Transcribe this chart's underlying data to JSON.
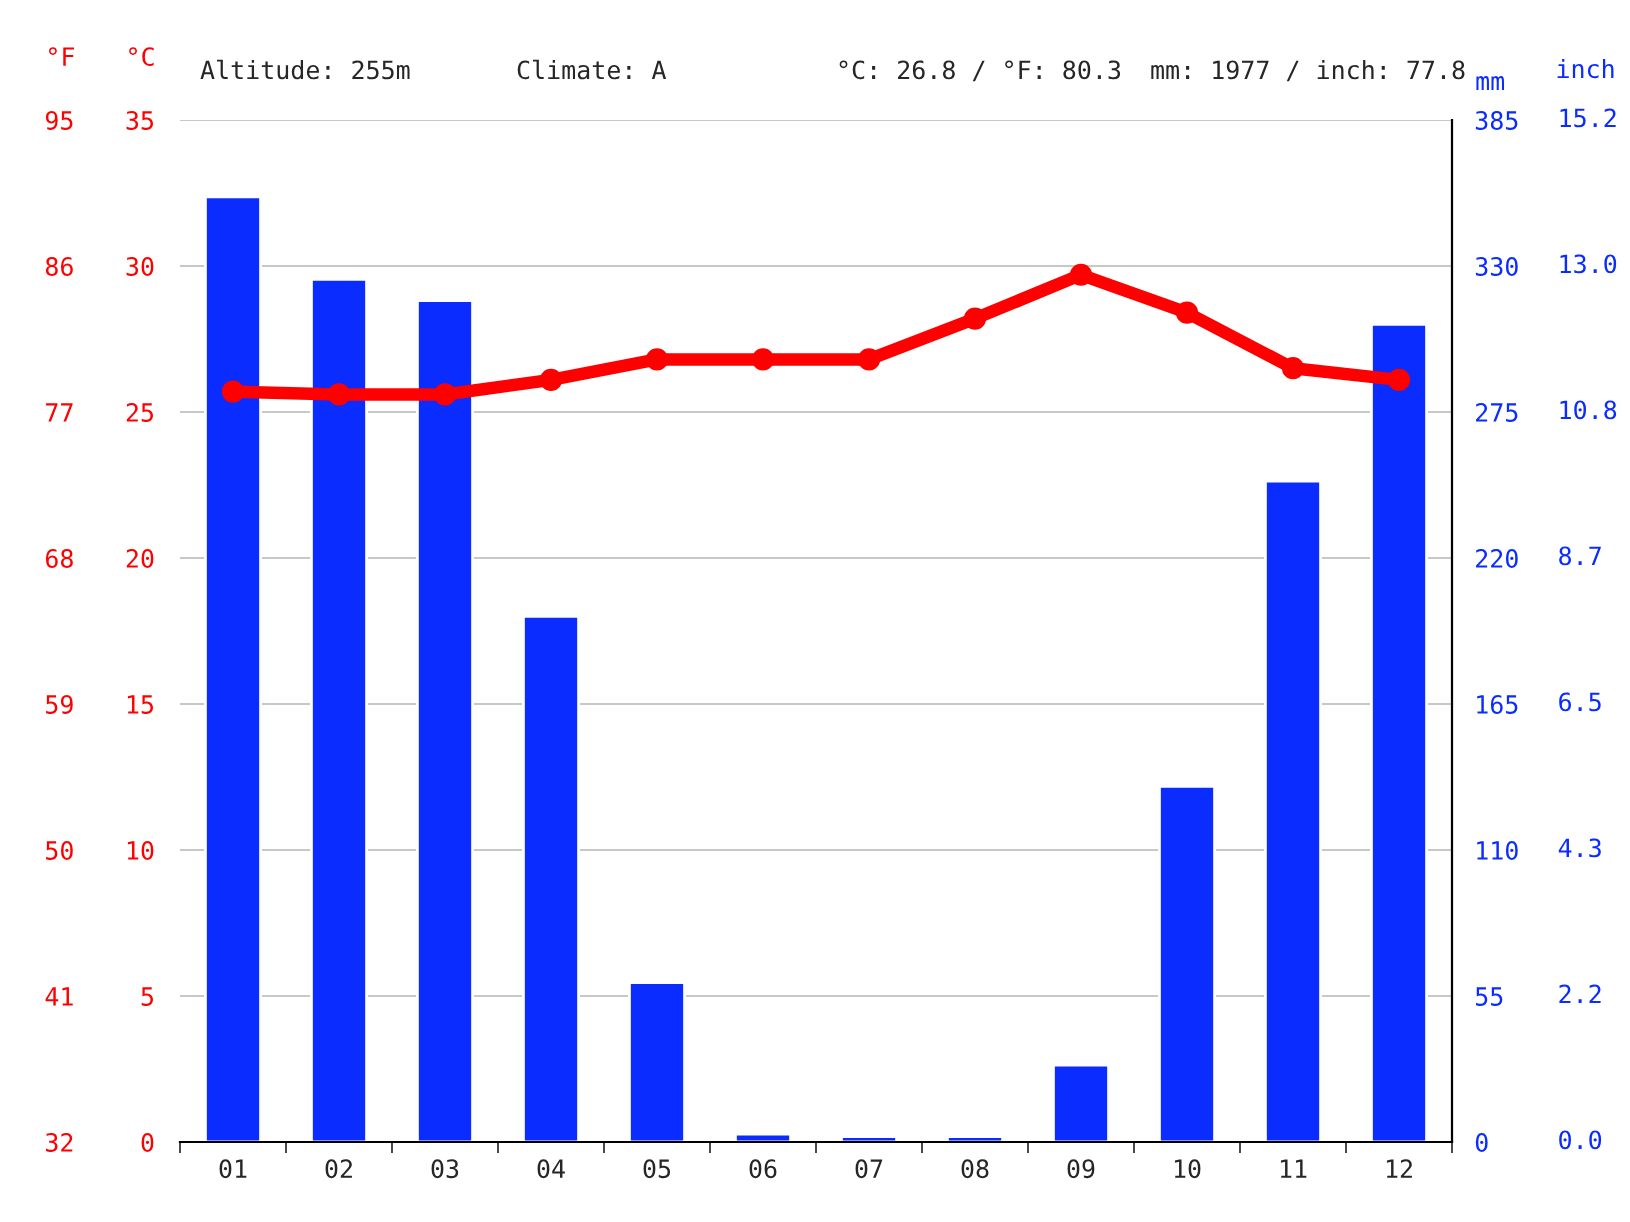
{
  "chart_data": {
    "type": "bar",
    "categories": [
      "01",
      "02",
      "03",
      "04",
      "05",
      "06",
      "07",
      "08",
      "09",
      "10",
      "11",
      "12"
    ],
    "series": [
      {
        "axis": "y2",
        "color": "#0a2cff",
        "values": [
          356,
          325,
          317,
          198,
          60,
          3,
          2,
          2,
          29,
          134,
          249,
          308
        ]
      },
      {
        "type": "line",
        "axis": "y",
        "color": "#ff0000",
        "values": [
          25.7,
          25.6,
          25.6,
          26.1,
          26.8,
          26.8,
          26.8,
          28.2,
          29.7,
          28.4,
          26.5,
          26.1
        ]
      }
    ],
    "ylabel": "°C",
    "y2label": "mm",
    "y3label": "°F",
    "ylim": [
      0,
      35
    ],
    "yticks": [
      0,
      5,
      10,
      15,
      20,
      25,
      30,
      35
    ],
    "y2lim": [
      0,
      385
    ],
    "y2ticks": [
      0,
      55,
      110,
      165,
      220,
      275,
      330,
      385
    ],
    "y3lim": [
      32,
      95
    ],
    "y3ticks": [
      32,
      41,
      50,
      59,
      68,
      77,
      86,
      95
    ],
    "annotations": [
      "Altitude: 255m",
      "Climate: A",
      "°C: 26.8 / °F: 80.3",
      "mm: 1977 / inch: 77.8",
      "inch",
      "0.0",
      "2.2",
      "4.3",
      "6.5",
      "8.7",
      "10.8",
      "13.0",
      "15.2"
    ],
    "grid": "y",
    "marker": "circle",
    "line_style": "solid"
  }
}
